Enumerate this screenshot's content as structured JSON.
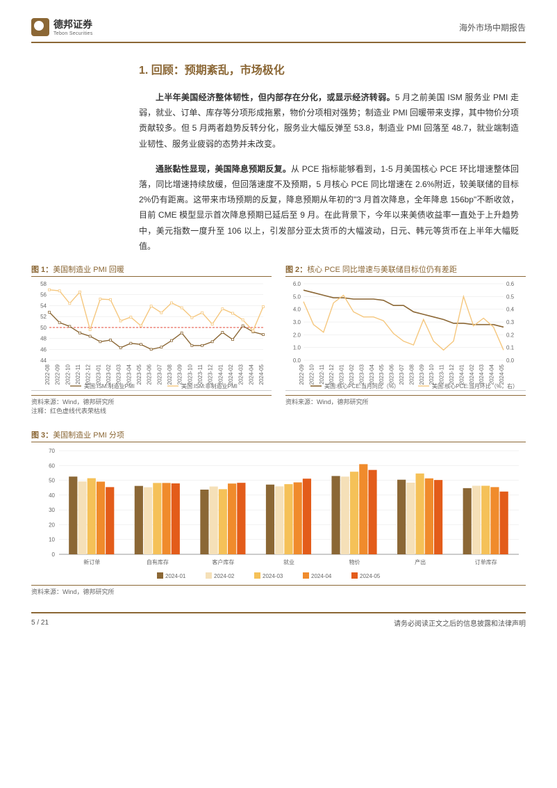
{
  "header": {
    "logo_cn": "德邦证券",
    "logo_en": "Tebon Securities",
    "report_type": "海外市场中期报告"
  },
  "section": {
    "title": "1. 回顾：预期紊乱，市场极化",
    "para1_bold": "上半年美国经济整体韧性，但内部存在分化，或显示经济转弱。",
    "para1_rest": "5 月之前美国 ISM 服务业 PMI 走弱，就业、订单、库存等分项形成拖累，物价分项相对强势；制造业 PMI 回暖带来支撑，其中物价分项贡献较多。但 5 月两者趋势反转分化，服务业大幅反弹至 53.8，制造业 PMI 回落至 48.7，就业端制造业韧性、服务业疲弱的态势并未改变。",
    "para2_bold": "通胀黏性显现，美国降息预期反复。",
    "para2_rest": "从 PCE 指标能够看到，1-5 月美国核心 PCE 环比增速整体回落，同比增速持续放缓，但回落速度不及预期，5 月核心 PCE 同比增速在 2.6%附近，较美联储的目标 2%仍有距离。这带来市场预期的反复，降息预期从年初的\"3 月首次降息，全年降息 156bp\"不断收敛，目前 CME 模型显示首次降息预期已延后至 9 月。在此背景下，今年以来美债收益率一直处于上升趋势中，美元指数一度升至 106 以上，引发部分亚太货币的大幅波动，日元、韩元等货币在上半年大幅贬值。"
  },
  "chart1": {
    "type": "line",
    "title_num": "图 1：",
    "title_text": "美国制造业 PMI 回暖",
    "months": [
      "2022-08",
      "2022-09",
      "2022-10",
      "2022-11",
      "2022-12",
      "2023-01",
      "2023-02",
      "2023-03",
      "2023-04",
      "2023-05",
      "2023-06",
      "2023-07",
      "2023-08",
      "2023-09",
      "2023-10",
      "2023-11",
      "2023-12",
      "2024-01",
      "2024-02",
      "2024-03",
      "2024-04",
      "2024-05"
    ],
    "series1_name": "美国:ISM:制造业PMI",
    "series1_color": "#8b6735",
    "series1": [
      52.8,
      50.9,
      50.2,
      49.0,
      48.4,
      47.4,
      47.7,
      46.3,
      47.1,
      46.9,
      46.0,
      46.4,
      47.6,
      49.0,
      46.7,
      46.7,
      47.4,
      49.1,
      47.8,
      50.3,
      49.2,
      48.7
    ],
    "series2_name": "美国:ISM:非制造业PMI",
    "series2_color": "#f5c77e",
    "series2": [
      56.9,
      56.7,
      54.4,
      56.5,
      49.6,
      55.2,
      55.1,
      51.2,
      51.9,
      50.3,
      53.9,
      52.7,
      54.5,
      53.6,
      51.8,
      52.7,
      50.6,
      53.4,
      52.6,
      51.4,
      49.4,
      53.8
    ],
    "ref_line": 50,
    "ref_color": "#e74c3c",
    "ylim": [
      44,
      58
    ],
    "yticks": [
      44,
      46,
      48,
      50,
      52,
      54,
      56,
      58
    ],
    "source": "资料来源：Wind，德邦研究所",
    "note": "注释：红色虚线代表荣枯线"
  },
  "chart2": {
    "type": "dual-line",
    "title_num": "图 2：",
    "title_text": "核心 PCE 同比增速与美联储目标位仍有差距",
    "months": [
      "2022-09",
      "2022-10",
      "2022-11",
      "2022-12",
      "2023-01",
      "2023-02",
      "2023-03",
      "2023-04",
      "2023-05",
      "2023-06",
      "2023-07",
      "2023-08",
      "2023-09",
      "2023-10",
      "2023-11",
      "2023-12",
      "2024-01",
      "2024-02",
      "2024-03",
      "2024-04",
      "2024-05"
    ],
    "series1_name": "美国:核心PCE:当月同比（%）",
    "series1_color": "#8b6735",
    "series1": [
      5.5,
      5.3,
      5.1,
      4.9,
      4.9,
      4.8,
      4.8,
      4.8,
      4.7,
      4.3,
      4.3,
      3.8,
      3.6,
      3.4,
      3.2,
      2.9,
      2.9,
      2.8,
      2.8,
      2.8,
      2.6
    ],
    "series2_name": "美国:核心PCE:当月环比（%，右）",
    "series2_color": "#f5c77e",
    "series2": [
      0.46,
      0.28,
      0.22,
      0.45,
      0.51,
      0.38,
      0.34,
      0.34,
      0.31,
      0.21,
      0.15,
      0.12,
      0.32,
      0.15,
      0.08,
      0.15,
      0.5,
      0.27,
      0.33,
      0.26,
      0.08
    ],
    "ylim_left": [
      0,
      6
    ],
    "yticks_left": [
      0.0,
      1.0,
      2.0,
      3.0,
      4.0,
      5.0,
      6.0
    ],
    "ylim_right": [
      0,
      0.6
    ],
    "yticks_right": [
      0.0,
      0.1,
      0.2,
      0.3,
      0.4,
      0.5,
      0.6
    ],
    "source": "资料来源：Wind，德邦研究所"
  },
  "chart3": {
    "type": "grouped-bar",
    "title_num": "图 3：",
    "title_text": "美国制造业 PMI 分项",
    "categories": [
      "新订单",
      "自有库存",
      "客户库存",
      "就业",
      "物价",
      "产出",
      "订单库存"
    ],
    "series_names": [
      "2024-01",
      "2024-02",
      "2024-03",
      "2024-04",
      "2024-05"
    ],
    "series_colors": [
      "#8b6735",
      "#f5e0b8",
      "#f5c158",
      "#f08b2c",
      "#e35c1a"
    ],
    "data": {
      "新订单": [
        52.5,
        49.2,
        51.4,
        49.1,
        45.4
      ],
      "自有库存": [
        46.2,
        45.3,
        48.2,
        48.2,
        47.9
      ],
      "客户库存": [
        43.7,
        45.8,
        44.0,
        47.8,
        48.3
      ],
      "就业": [
        47.1,
        45.9,
        47.4,
        48.6,
        51.1
      ],
      "物价": [
        52.9,
        52.5,
        55.8,
        60.9,
        57.0
      ],
      "产出": [
        50.4,
        48.4,
        54.6,
        51.3,
        50.2
      ],
      "订单库存": [
        44.7,
        46.3,
        46.3,
        45.4,
        42.4
      ]
    },
    "ylim": [
      0,
      70
    ],
    "yticks": [
      0,
      10,
      20,
      30,
      40,
      50,
      60,
      70
    ],
    "source": "资料来源：Wind，德邦研究所"
  },
  "footer": {
    "page": "5 / 21",
    "disclaimer": "请务必阅读正文之后的信息披露和法律声明"
  },
  "colors": {
    "brand": "#8b6735",
    "bg": "#ffffff",
    "text": "#333333",
    "grid": "#e5e5e5"
  }
}
